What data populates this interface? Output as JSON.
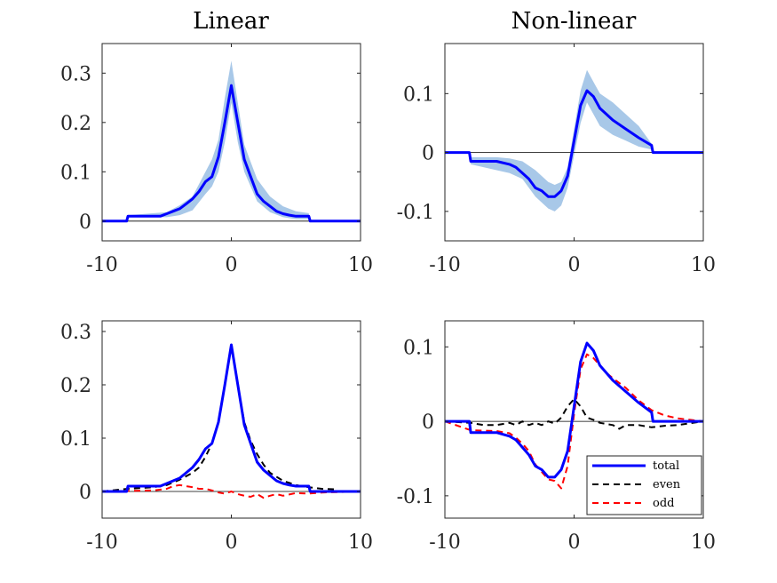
{
  "chart_data": [
    {
      "id": "linear-top",
      "type": "line",
      "title": "Linear",
      "xlabel": "",
      "ylabel": "",
      "xlim": [
        -10,
        10
      ],
      "ylim": [
        -0.04,
        0.36
      ],
      "xticks": [
        -10,
        0,
        10
      ],
      "xtick_labels": [
        "-10",
        "0",
        "10"
      ],
      "yticks": [
        0,
        0.1,
        0.2,
        0.3
      ],
      "ytick_labels": [
        "0",
        "0.1",
        "0.2",
        "0.3"
      ],
      "grid": false,
      "zero_line": true,
      "band": {
        "color": "#a8c8e8",
        "x": [
          -8,
          -5,
          -4,
          -3,
          -2,
          -1.5,
          -1,
          -0.5,
          0,
          0.5,
          1,
          1.5,
          2,
          3,
          4,
          5,
          6
        ],
        "lower": [
          0.008,
          0.008,
          0.012,
          0.022,
          0.055,
          0.07,
          0.1,
          0.16,
          0.24,
          0.16,
          0.1,
          0.07,
          0.04,
          0.018,
          0.008,
          0.004,
          0.004
        ],
        "upper": [
          0.012,
          0.018,
          0.032,
          0.05,
          0.1,
          0.125,
          0.165,
          0.25,
          0.325,
          0.24,
          0.155,
          0.12,
          0.085,
          0.05,
          0.03,
          0.02,
          0.016
        ]
      },
      "series": [
        {
          "color": "#0000ff",
          "style": "solid",
          "x": [
            -10,
            -8.1,
            -8,
            -5.5,
            -5,
            -4.5,
            -4,
            -3.5,
            -3,
            -2.5,
            -2,
            -1.5,
            -1,
            -0.5,
            0,
            0.5,
            1,
            1.5,
            2,
            2.5,
            3,
            3.5,
            4,
            4.5,
            5,
            5.5,
            6,
            6.1,
            10
          ],
          "y": [
            0,
            0,
            0.01,
            0.01,
            0.015,
            0.02,
            0.025,
            0.035,
            0.045,
            0.06,
            0.08,
            0.09,
            0.13,
            0.2,
            0.275,
            0.2,
            0.125,
            0.09,
            0.055,
            0.04,
            0.03,
            0.02,
            0.015,
            0.012,
            0.01,
            0.01,
            0.01,
            0,
            0
          ]
        }
      ]
    },
    {
      "id": "nonlinear-top",
      "type": "line",
      "title": "Non-linear",
      "xlabel": "",
      "ylabel": "",
      "xlim": [
        -10,
        10
      ],
      "ylim": [
        -0.15,
        0.185
      ],
      "xticks": [
        -10,
        0,
        10
      ],
      "xtick_labels": [
        "-10",
        "0",
        "10"
      ],
      "yticks": [
        -0.1,
        0,
        0.1
      ],
      "ytick_labels": [
        "-0.1",
        "0",
        "0.1"
      ],
      "grid": false,
      "zero_line": true,
      "band": {
        "color": "#a8c8e8",
        "x": [
          -8,
          -6,
          -5,
          -4,
          -3,
          -2,
          -1.5,
          -1,
          -0.5,
          0,
          0.5,
          1,
          1.5,
          2,
          3,
          4,
          5,
          6
        ],
        "lower": [
          -0.02,
          -0.03,
          -0.035,
          -0.045,
          -0.075,
          -0.095,
          -0.1,
          -0.09,
          -0.06,
          -0.005,
          0.05,
          0.085,
          0.065,
          0.045,
          0.03,
          0.02,
          0.01,
          0.005
        ],
        "upper": [
          -0.008,
          -0.008,
          -0.01,
          -0.015,
          -0.03,
          -0.05,
          -0.055,
          -0.05,
          -0.025,
          0.04,
          0.105,
          0.14,
          0.12,
          0.1,
          0.085,
          0.065,
          0.045,
          0.015
        ]
      },
      "series": [
        {
          "color": "#0000ff",
          "style": "solid",
          "x": [
            -10,
            -8.1,
            -8,
            -6,
            -5,
            -4.5,
            -4,
            -3.5,
            -3,
            -2.5,
            -2,
            -1.5,
            -1,
            -0.5,
            0,
            0.5,
            1,
            1.5,
            2,
            2.5,
            3,
            4,
            5,
            6,
            6.1,
            10
          ],
          "y": [
            0,
            0,
            -0.015,
            -0.015,
            -0.02,
            -0.025,
            -0.035,
            -0.045,
            -0.06,
            -0.065,
            -0.075,
            -0.075,
            -0.065,
            -0.04,
            0.02,
            0.08,
            0.105,
            0.095,
            0.075,
            0.065,
            0.055,
            0.04,
            0.025,
            0.012,
            0,
            0
          ]
        }
      ]
    },
    {
      "id": "linear-bottom",
      "type": "line",
      "title": "",
      "xlabel": "",
      "ylabel": "",
      "xlim": [
        -10,
        10
      ],
      "ylim": [
        -0.05,
        0.32
      ],
      "xticks": [
        -10,
        0,
        10
      ],
      "xtick_labels": [
        "-10",
        "0",
        "10"
      ],
      "yticks": [
        0,
        0.1,
        0.2,
        0.3
      ],
      "ytick_labels": [
        "0",
        "0.1",
        "0.2",
        "0.3"
      ],
      "grid": false,
      "zero_line": true,
      "series": [
        {
          "color": "#0000ff",
          "style": "solid",
          "x": [
            -10,
            -8.1,
            -8,
            -5.5,
            -5,
            -4.5,
            -4,
            -3.5,
            -3,
            -2.5,
            -2,
            -1.5,
            -1,
            -0.5,
            0,
            0.5,
            1,
            1.5,
            2,
            2.5,
            3,
            3.5,
            4,
            4.5,
            5,
            5.5,
            6,
            6.1,
            10
          ],
          "y": [
            0,
            0,
            0.01,
            0.01,
            0.015,
            0.02,
            0.025,
            0.035,
            0.045,
            0.06,
            0.08,
            0.09,
            0.13,
            0.2,
            0.275,
            0.2,
            0.125,
            0.09,
            0.055,
            0.04,
            0.03,
            0.02,
            0.015,
            0.012,
            0.01,
            0.01,
            0.01,
            0,
            0
          ]
        },
        {
          "color": "#000000",
          "style": "dashed",
          "x": [
            -10,
            -8,
            -6,
            -5,
            -4,
            -3,
            -2.5,
            -2,
            -1.5,
            -1,
            -0.5,
            0,
            0.5,
            1,
            1.5,
            2,
            2.5,
            3,
            4,
            5,
            6,
            7,
            8,
            8.1,
            10
          ],
          "y": [
            0,
            0.005,
            0.008,
            0.012,
            0.022,
            0.035,
            0.045,
            0.065,
            0.09,
            0.13,
            0.2,
            0.275,
            0.2,
            0.13,
            0.095,
            0.07,
            0.05,
            0.035,
            0.02,
            0.012,
            0.008,
            0.005,
            0.004,
            0,
            0
          ]
        },
        {
          "color": "#ff0000",
          "style": "dashed",
          "x": [
            -10,
            -8,
            -6,
            -5,
            -4.5,
            -4,
            -3.5,
            -3,
            -2.5,
            -2,
            -1.5,
            -1,
            -0.5,
            0,
            0.5,
            1,
            1.5,
            2,
            2.5,
            3,
            3.5,
            4,
            5,
            6,
            7,
            10
          ],
          "y": [
            0,
            0.001,
            0.002,
            0.005,
            0.01,
            0.012,
            0.01,
            0.008,
            0.005,
            0.005,
            0.002,
            -0.002,
            -0.004,
            0,
            -0.005,
            -0.008,
            -0.01,
            -0.005,
            -0.012,
            -0.008,
            -0.005,
            -0.008,
            -0.003,
            -0.004,
            -0.002,
            0
          ]
        }
      ]
    },
    {
      "id": "nonlinear-bottom",
      "type": "line",
      "title": "",
      "xlabel": "",
      "ylabel": "",
      "xlim": [
        -10,
        10
      ],
      "ylim": [
        -0.13,
        0.135
      ],
      "xticks": [
        -10,
        0,
        10
      ],
      "xtick_labels": [
        "-10",
        "0",
        "10"
      ],
      "yticks": [
        -0.1,
        0,
        0.1
      ],
      "ytick_labels": [
        "-0.1",
        "0",
        "0.1"
      ],
      "grid": false,
      "zero_line": true,
      "legend": {
        "location": "bottom-right",
        "entries": [
          "total",
          "even",
          "odd"
        ]
      },
      "series": [
        {
          "name": "total",
          "color": "#0000ff",
          "style": "solid",
          "x": [
            -10,
            -8.1,
            -8,
            -6,
            -5,
            -4.5,
            -4,
            -3.5,
            -3,
            -2.5,
            -2,
            -1.5,
            -1,
            -0.5,
            0,
            0.5,
            1,
            1.5,
            2,
            2.5,
            3,
            4,
            5,
            6,
            6.1,
            10
          ],
          "y": [
            0,
            0,
            -0.015,
            -0.015,
            -0.02,
            -0.025,
            -0.035,
            -0.045,
            -0.06,
            -0.065,
            -0.075,
            -0.075,
            -0.065,
            -0.04,
            0.02,
            0.08,
            0.105,
            0.095,
            0.075,
            0.065,
            0.055,
            0.04,
            0.025,
            0.012,
            0,
            0
          ]
        },
        {
          "name": "even",
          "color": "#000000",
          "style": "dashed",
          "x": [
            -10,
            -8,
            -7,
            -6,
            -5,
            -4.5,
            -4,
            -3.5,
            -3,
            -2.5,
            -2,
            -1.5,
            -1,
            -0.5,
            0,
            0.5,
            1,
            1.5,
            2,
            3,
            3.5,
            4,
            5,
            6,
            7,
            8,
            10
          ],
          "y": [
            0,
            -0.002,
            -0.005,
            -0.005,
            -0.002,
            -0.005,
            0,
            -0.005,
            -0.002,
            -0.005,
            0,
            -0.003,
            0.005,
            0.02,
            0.03,
            0.02,
            0.005,
            0.002,
            -0.002,
            -0.005,
            -0.01,
            -0.005,
            -0.005,
            -0.008,
            -0.006,
            -0.005,
            0
          ]
        },
        {
          "name": "odd",
          "color": "#ff0000",
          "style": "dashed",
          "x": [
            -10,
            -8,
            -6,
            -5,
            -4.5,
            -4,
            -3.5,
            -3,
            -2.5,
            -2,
            -1.5,
            -1,
            -0.5,
            0,
            0.5,
            1,
            1.5,
            2,
            2.5,
            3,
            4,
            5,
            6,
            7,
            8,
            10
          ],
          "y": [
            0,
            -0.012,
            -0.013,
            -0.016,
            -0.022,
            -0.03,
            -0.04,
            -0.058,
            -0.068,
            -0.078,
            -0.08,
            -0.09,
            -0.06,
            0.01,
            0.07,
            0.09,
            0.085,
            0.075,
            0.065,
            0.058,
            0.045,
            0.028,
            0.015,
            0.008,
            0.004,
            0
          ]
        }
      ]
    }
  ]
}
